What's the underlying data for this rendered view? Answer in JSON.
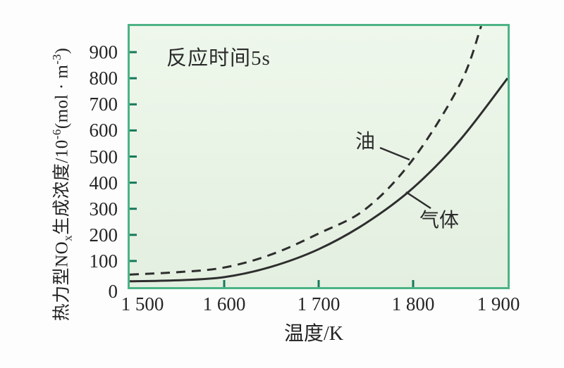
{
  "figure_title": "thermal NOx formation vs temperature",
  "y_title": {
    "p1": "热力型NO",
    "sub": "x",
    "p2": "生成浓度/10",
    "sup1": "-6",
    "p3": "(mol · m",
    "sup2": "-3",
    "p4": ")"
  },
  "chart_data": {
    "type": "line",
    "title": "",
    "annotation": "反应时间5s",
    "xlabel": "温度/K",
    "ylabel": "热力型NOx生成浓度/10-6(mol·m-3)",
    "xlim": [
      1500,
      1900
    ],
    "ylim": [
      0,
      1000
    ],
    "xticks": [
      1500,
      1600,
      1700,
      1800,
      1900
    ],
    "xtick_labels": [
      "1 500",
      "1 600",
      "1 700",
      "1 800",
      "1 900"
    ],
    "yticks": [
      0,
      100,
      200,
      300,
      400,
      500,
      600,
      700,
      800,
      900
    ],
    "ytick_labels": [
      "0",
      "100",
      "200",
      "300",
      "400",
      "500",
      "600",
      "700",
      "800",
      "900"
    ],
    "grid": false,
    "legend_position": "inline-labels",
    "series": [
      {
        "name": "油",
        "style": "dashed",
        "color": "#2e2e2e",
        "points": [
          [
            1500,
            48
          ],
          [
            1550,
            57
          ],
          [
            1600,
            75
          ],
          [
            1650,
            125
          ],
          [
            1700,
            205
          ],
          [
            1750,
            300
          ],
          [
            1800,
            490
          ],
          [
            1850,
            780
          ],
          [
            1872,
            1000
          ]
        ]
      },
      {
        "name": "气体",
        "style": "solid",
        "color": "#2e2e2e",
        "points": [
          [
            1500,
            22
          ],
          [
            1550,
            26
          ],
          [
            1600,
            38
          ],
          [
            1650,
            78
          ],
          [
            1700,
            145
          ],
          [
            1750,
            245
          ],
          [
            1800,
            380
          ],
          [
            1850,
            565
          ],
          [
            1900,
            800
          ]
        ]
      }
    ]
  },
  "colors": {
    "plot_border": "#4cb385",
    "tick": "#17795b",
    "curve": "#2e2e2e",
    "plot_bg_top": "#eef7eb",
    "plot_bg_bottom": "#e3efe0",
    "text": "#222222"
  }
}
